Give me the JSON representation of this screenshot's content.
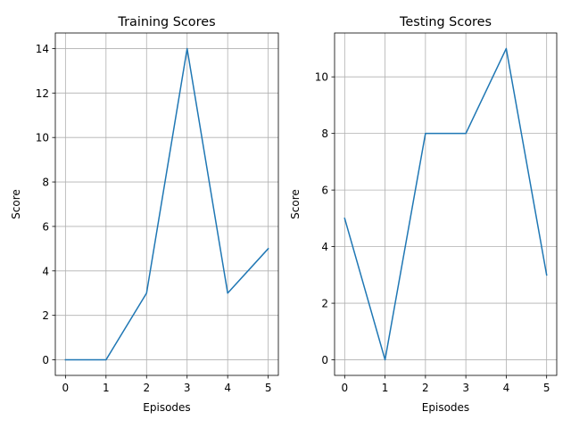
{
  "chart_data": [
    {
      "type": "line",
      "title": "Training Scores",
      "xlabel": "Episodes",
      "ylabel": "Score",
      "x": [
        0,
        1,
        2,
        3,
        4,
        5
      ],
      "values": [
        0,
        0,
        3,
        14,
        3,
        5
      ],
      "xlim": [
        -0.25,
        5.25
      ],
      "ylim": [
        -0.7,
        14.7
      ],
      "xticks": [
        0,
        1,
        2,
        3,
        4,
        5
      ],
      "yticks": [
        0,
        2,
        4,
        6,
        8,
        10,
        12,
        14
      ],
      "grid": true,
      "color": "#1f77b4"
    },
    {
      "type": "line",
      "title": "Testing Scores",
      "xlabel": "Episodes",
      "ylabel": "Score",
      "x": [
        0,
        1,
        2,
        3,
        4,
        5
      ],
      "values": [
        5,
        0,
        8,
        8,
        11,
        3
      ],
      "xlim": [
        -0.25,
        5.25
      ],
      "ylim": [
        -0.55,
        11.55
      ],
      "xticks": [
        0,
        1,
        2,
        3,
        4,
        5
      ],
      "yticks": [
        0,
        2,
        4,
        6,
        8,
        10
      ],
      "grid": true,
      "color": "#1f77b4"
    }
  ]
}
